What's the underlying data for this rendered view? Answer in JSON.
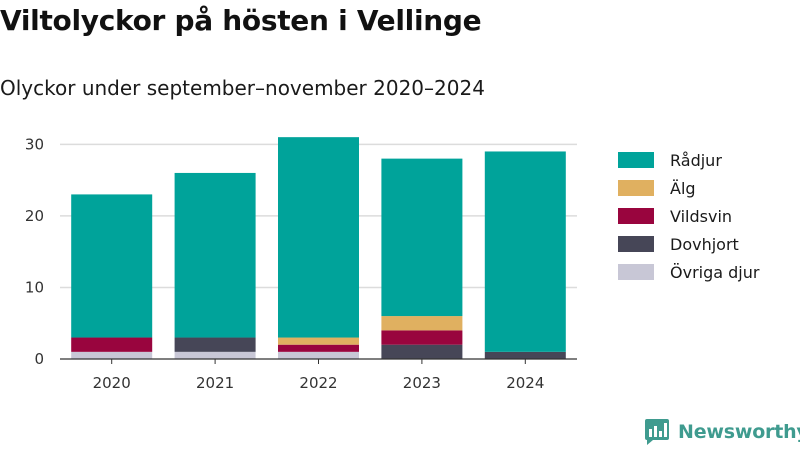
{
  "header": {
    "title": "Viltolyckor på hösten i Vellinge",
    "subtitle": "Olyckor under september–november 2020–2024"
  },
  "chart_data": {
    "type": "bar",
    "stacked": true,
    "categories": [
      "2020",
      "2021",
      "2022",
      "2023",
      "2024"
    ],
    "series": [
      {
        "name": "Övriga djur",
        "color": "#c8c7d6",
        "values": [
          1,
          1,
          1,
          0,
          0
        ]
      },
      {
        "name": "Dovhjort",
        "color": "#464657",
        "values": [
          0,
          2,
          0,
          2,
          1
        ]
      },
      {
        "name": "Vildsvin",
        "color": "#99053e",
        "values": [
          2,
          0,
          1,
          2,
          0
        ]
      },
      {
        "name": "Älg",
        "color": "#e0b060",
        "values": [
          0,
          0,
          1,
          2,
          0
        ]
      },
      {
        "name": "Rådjur",
        "color": "#00a39a",
        "values": [
          20,
          23,
          28,
          22,
          28
        ]
      }
    ],
    "totals": [
      23,
      26,
      31,
      28,
      29
    ],
    "y_ticks": [
      0,
      10,
      20,
      30
    ],
    "ylim": [
      0,
      32
    ],
    "xlabel": "",
    "ylabel": "",
    "grid": true,
    "legend_position": "right"
  },
  "legend": {
    "items": [
      {
        "label": "Rådjur",
        "color": "#00a39a"
      },
      {
        "label": "Älg",
        "color": "#e0b060"
      },
      {
        "label": "Vildsvin",
        "color": "#99053e"
      },
      {
        "label": "Dovhjort",
        "color": "#464657"
      },
      {
        "label": "Övriga djur",
        "color": "#c8c7d6"
      }
    ]
  },
  "brand": {
    "name": "Newsworthy",
    "icon": "newsworthy-logo-icon",
    "color": "#3f9b8f"
  }
}
